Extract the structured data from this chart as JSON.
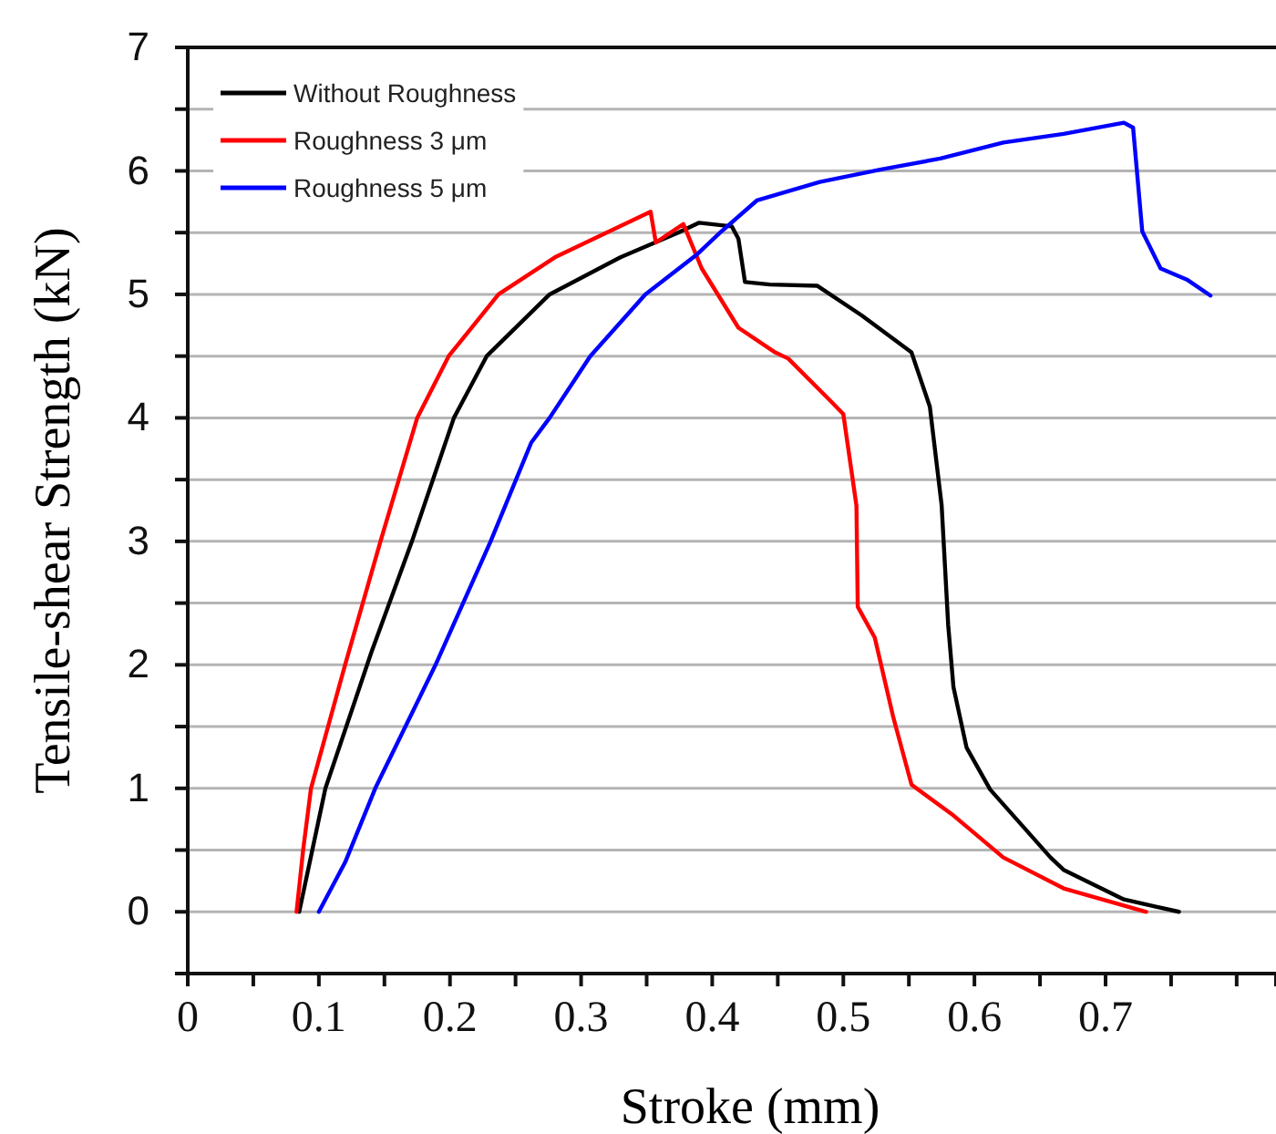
{
  "chart_data": {
    "type": "line",
    "xlabel": "Stroke (mm)",
    "ylabel": "Tensile-shear Strength (kN)",
    "xlim": [
      0,
      0.83
    ],
    "ylim": [
      -0.5,
      7
    ],
    "xticks": [
      0,
      {
        "value": 0.05,
        "label": null
      },
      0.1,
      {
        "value": 0.15,
        "label": null
      },
      0.2,
      {
        "value": 0.25,
        "label": null
      },
      0.3,
      {
        "value": 0.35,
        "label": null
      },
      0.4,
      {
        "value": 0.45,
        "label": null
      },
      0.5,
      {
        "value": 0.55,
        "label": null
      },
      0.6,
      {
        "value": 0.65,
        "label": null
      },
      0.7,
      {
        "value": 0.75,
        "label": null
      },
      {
        "value": 0.8,
        "label": null
      }
    ],
    "yticks": [
      {
        "value": -0.5,
        "label": null
      },
      0,
      {
        "value": 0.5,
        "label": null
      },
      1,
      {
        "value": 1.5,
        "label": null
      },
      2,
      {
        "value": 2.5,
        "label": null
      },
      3,
      {
        "value": 3.5,
        "label": null
      },
      4,
      {
        "value": 4.5,
        "label": null
      },
      5,
      {
        "value": 5.5,
        "label": null
      },
      6,
      {
        "value": 6.5,
        "label": null
      },
      7
    ],
    "grid": "y",
    "legend": "top left",
    "series": [
      {
        "name": "Without Roughness",
        "color": "#000000",
        "x": [
          0.085,
          0.095,
          0.105,
          0.14,
          0.171,
          0.203,
          0.228,
          0.276,
          0.33,
          0.374,
          0.39,
          0.415,
          0.42,
          0.425,
          0.444,
          0.48,
          0.514,
          0.552,
          0.566,
          0.575,
          0.58,
          0.584,
          0.594,
          0.612,
          0.658,
          0.668,
          0.714,
          0.756
        ],
        "values": [
          0,
          0.5,
          1,
          2.1,
          3,
          4,
          4.5,
          5,
          5.3,
          5.5,
          5.58,
          5.55,
          5.45,
          5.1,
          5.08,
          5.07,
          4.83,
          4.53,
          4.09,
          3.29,
          2.32,
          1.82,
          1.33,
          0.99,
          0.44,
          0.34,
          0.1,
          0
        ]
      },
      {
        "name": "Roughness 3 μm",
        "color": "#ff0000",
        "x": [
          0.083,
          0.088,
          0.094,
          0.12,
          0.147,
          0.175,
          0.199,
          0.237,
          0.28,
          0.353,
          0.357,
          0.378,
          0.392,
          0.42,
          0.448,
          0.458,
          0.49,
          0.5,
          0.51,
          0.511,
          0.524,
          0.538,
          0.552,
          0.584,
          0.622,
          0.668,
          0.731
        ],
        "values": [
          0,
          0.5,
          1,
          2,
          3,
          4,
          4.5,
          5,
          5.3,
          5.67,
          5.42,
          5.57,
          5.21,
          4.73,
          4.53,
          4.48,
          4.14,
          4.03,
          3.29,
          2.47,
          2.22,
          1.58,
          1.03,
          0.78,
          0.44,
          0.19,
          0
        ]
      },
      {
        "name": "Roughness 5 μm",
        "color": "#0000ff",
        "x": [
          0.1,
          0.12,
          0.143,
          0.189,
          0.231,
          0.262,
          0.276,
          0.307,
          0.349,
          0.388,
          0.406,
          0.434,
          0.482,
          0.528,
          0.574,
          0.622,
          0.668,
          0.714,
          0.721,
          0.728,
          0.742,
          0.762,
          0.78
        ],
        "values": [
          0,
          0.4,
          1,
          2,
          3,
          3.8,
          4,
          4.5,
          5,
          5.32,
          5.5,
          5.76,
          5.91,
          6.01,
          6.1,
          6.23,
          6.3,
          6.39,
          6.35,
          5.51,
          5.21,
          5.12,
          4.99
        ]
      }
    ]
  }
}
